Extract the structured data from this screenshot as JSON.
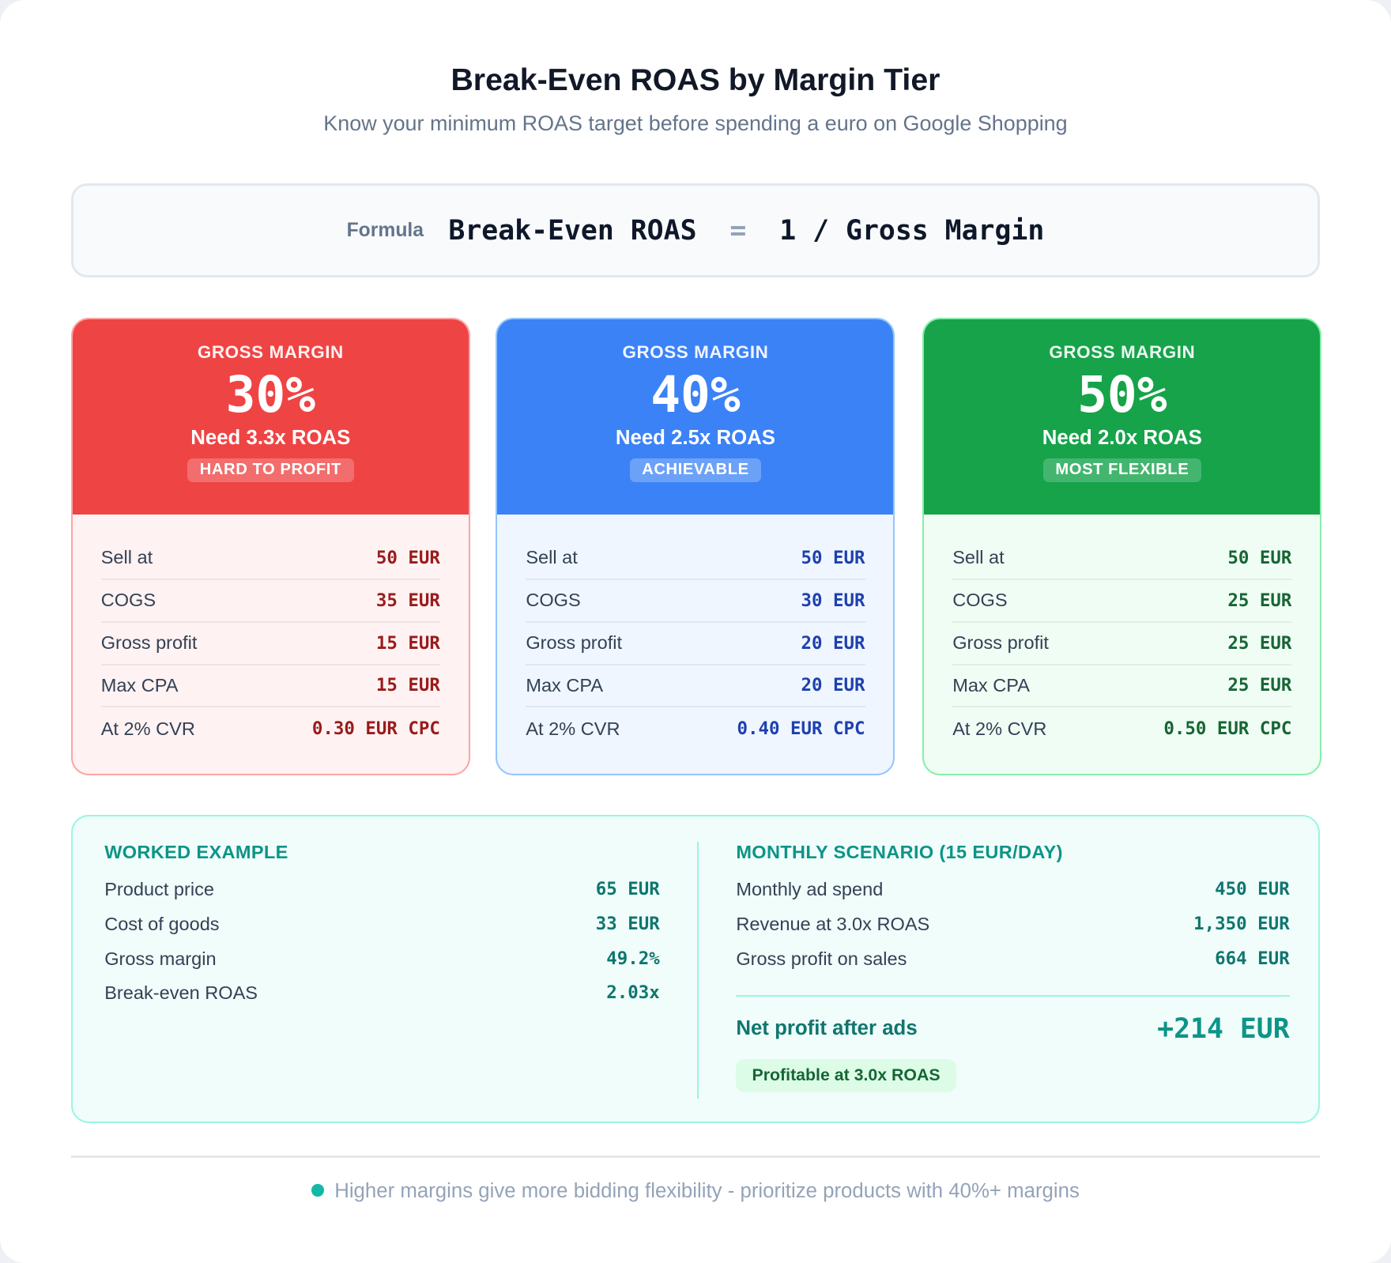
{
  "header": {
    "title": "Break-Even ROAS by Margin Tier",
    "subtitle": "Know your minimum ROAS target before spending a euro on Google Shopping"
  },
  "formula": {
    "label": "Formula",
    "left": "Break-Even ROAS",
    "equals": "=",
    "right": "1 / Gross Margin"
  },
  "colors": {
    "red": "#ef4444",
    "blue": "#3b82f6",
    "green": "#16a34a",
    "teal": "#0d9488"
  },
  "tiers": [
    {
      "label": "GROSS MARGIN",
      "margin": "30%",
      "need": "Need 3.3x ROAS",
      "badge": "HARD TO PROFIT",
      "rows": [
        {
          "k": "Sell at",
          "v": "50 EUR"
        },
        {
          "k": "COGS",
          "v": "35 EUR"
        },
        {
          "k": "Gross profit",
          "v": "15 EUR"
        },
        {
          "k": "Max CPA",
          "v": "15 EUR"
        },
        {
          "k": "At 2% CVR",
          "v": "0.30 EUR CPC"
        }
      ]
    },
    {
      "label": "GROSS MARGIN",
      "margin": "40%",
      "need": "Need 2.5x ROAS",
      "badge": "ACHIEVABLE",
      "rows": [
        {
          "k": "Sell at",
          "v": "50 EUR"
        },
        {
          "k": "COGS",
          "v": "30 EUR"
        },
        {
          "k": "Gross profit",
          "v": "20 EUR"
        },
        {
          "k": "Max CPA",
          "v": "20 EUR"
        },
        {
          "k": "At 2% CVR",
          "v": "0.40 EUR CPC"
        }
      ]
    },
    {
      "label": "GROSS MARGIN",
      "margin": "50%",
      "need": "Need 2.0x ROAS",
      "badge": "MOST FLEXIBLE",
      "rows": [
        {
          "k": "Sell at",
          "v": "50 EUR"
        },
        {
          "k": "COGS",
          "v": "25 EUR"
        },
        {
          "k": "Gross profit",
          "v": "25 EUR"
        },
        {
          "k": "Max CPA",
          "v": "25 EUR"
        },
        {
          "k": "At 2% CVR",
          "v": "0.50 EUR CPC"
        }
      ]
    }
  ],
  "worked": {
    "title": "WORKED EXAMPLE",
    "rows": [
      {
        "k": "Product price",
        "v": "65 EUR"
      },
      {
        "k": "Cost of goods",
        "v": "33 EUR"
      },
      {
        "k": "Gross margin",
        "v": "49.2%"
      },
      {
        "k": "Break-even ROAS",
        "v": "2.03x"
      }
    ]
  },
  "monthly": {
    "title": "MONTHLY SCENARIO (15 EUR/DAY)",
    "rows": [
      {
        "k": "Monthly ad spend",
        "v": "450 EUR"
      },
      {
        "k": "Revenue at 3.0x ROAS",
        "v": "1,350 EUR"
      },
      {
        "k": "Gross profit on sales",
        "v": "664 EUR"
      }
    ],
    "net_label": "Net profit after ads",
    "net_value": "+214 EUR",
    "status": "Profitable at 3.0x ROAS"
  },
  "footer": {
    "note": "Higher margins give more bidding flexibility - prioritize products with 40%+ margins"
  }
}
